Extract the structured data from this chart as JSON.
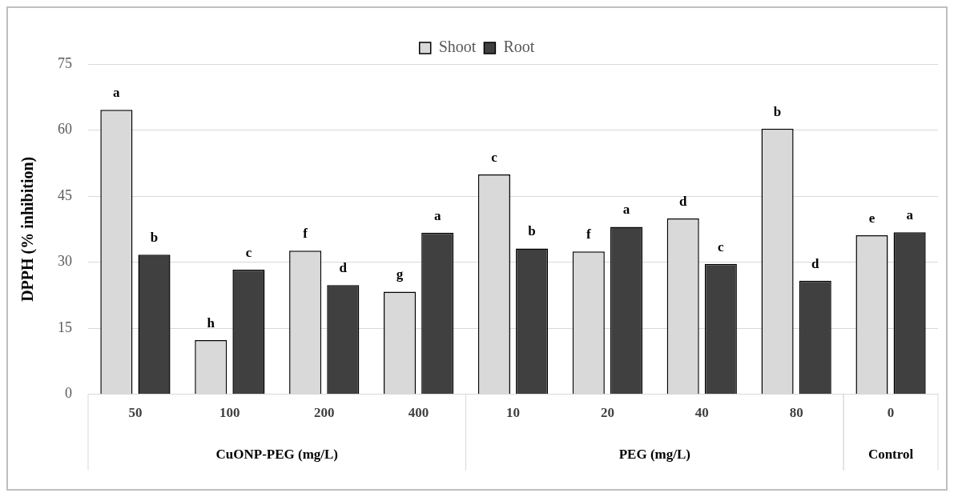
{
  "chart_data": {
    "type": "bar",
    "ylabel": "DPPH (% inhibition)",
    "categories": [
      "50",
      "100",
      "200",
      "400",
      "10",
      "20",
      "40",
      "80",
      "0"
    ],
    "series": [
      {
        "name": "Shoot",
        "color": "#d9d9d9",
        "values": [
          64.6,
          12.3,
          32.6,
          23.3,
          49.9,
          32.4,
          39.9,
          60.3,
          36.1
        ],
        "value_labels": [
          "a",
          "h",
          "f",
          "g",
          "c",
          "f",
          "d",
          "b",
          "e"
        ]
      },
      {
        "name": "Root",
        "color": "#404040",
        "values": [
          31.7,
          28.3,
          24.8,
          36.7,
          33.1,
          38.0,
          29.6,
          25.8,
          36.8
        ],
        "value_labels": [
          "b",
          "c",
          "d",
          "a",
          "b",
          "a",
          "c",
          "d",
          "a"
        ]
      }
    ],
    "ylim": [
      0,
      75
    ],
    "yticks": [
      0,
      15,
      30,
      45,
      60,
      75
    ],
    "grid": "y",
    "legend": "top",
    "annotations": [
      "CuONP-PEG (mg/L)",
      "PEG (mg/L)",
      "Control"
    ]
  }
}
